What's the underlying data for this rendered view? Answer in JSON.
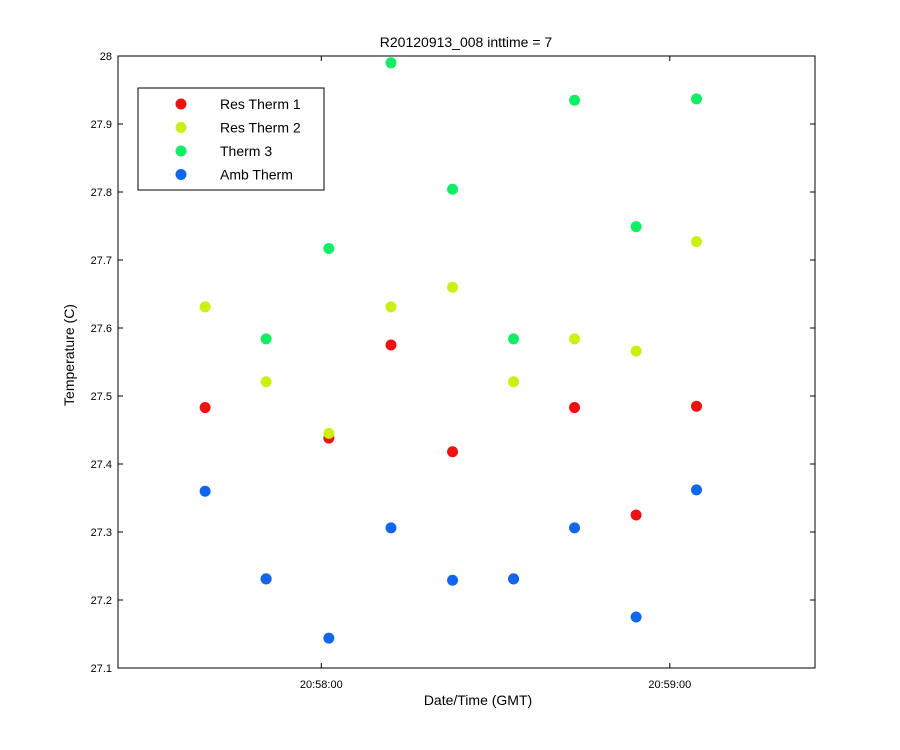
{
  "chart_data": {
    "type": "scatter",
    "title": "R20120913_008 inttime = 7",
    "xlabel": "Date/Time (GMT)",
    "ylabel": "Temperature (C)",
    "x_tick_labels": [
      "20:58:00",
      "20:59:00"
    ],
    "x_tick_times_sec": [
      0,
      60
    ],
    "xlim_sec": [
      -35,
      85
    ],
    "ylim": [
      27.1,
      28.0
    ],
    "y_ticks": [
      27.1,
      27.2,
      27.3,
      27.4,
      27.5,
      27.6,
      27.7,
      27.8,
      27.9,
      28.0
    ],
    "y_tick_labels": [
      "27.1",
      "27.2",
      "27.3",
      "27.4",
      "27.5",
      "27.6",
      "27.7",
      "27.8",
      "27.9",
      "28"
    ],
    "x_times_sec": [
      -20,
      -9.5,
      1.3,
      12,
      22.6,
      33.1,
      43.6,
      54.2,
      64.6
    ],
    "legend_position": "top-left",
    "grid": false,
    "series": [
      {
        "name": "Res Therm 1",
        "color": "#ee1111",
        "values": [
          27.483,
          27.231,
          27.438,
          27.575,
          27.418,
          27.231,
          27.483,
          27.325,
          27.485
        ]
      },
      {
        "name": "Res Therm 2",
        "color": "#ccee11",
        "values": [
          27.631,
          27.521,
          27.445,
          27.631,
          27.66,
          27.521,
          27.584,
          27.566,
          27.727
        ]
      },
      {
        "name": "Therm 3",
        "color": "#11ee66",
        "values": [
          null,
          27.584,
          27.717,
          27.99,
          27.804,
          27.584,
          27.935,
          27.749,
          27.937
        ]
      },
      {
        "name": "Amb Therm",
        "color": "#1166ee",
        "values": [
          27.36,
          27.231,
          27.144,
          27.306,
          27.229,
          27.231,
          27.306,
          27.175,
          27.362
        ]
      }
    ]
  }
}
